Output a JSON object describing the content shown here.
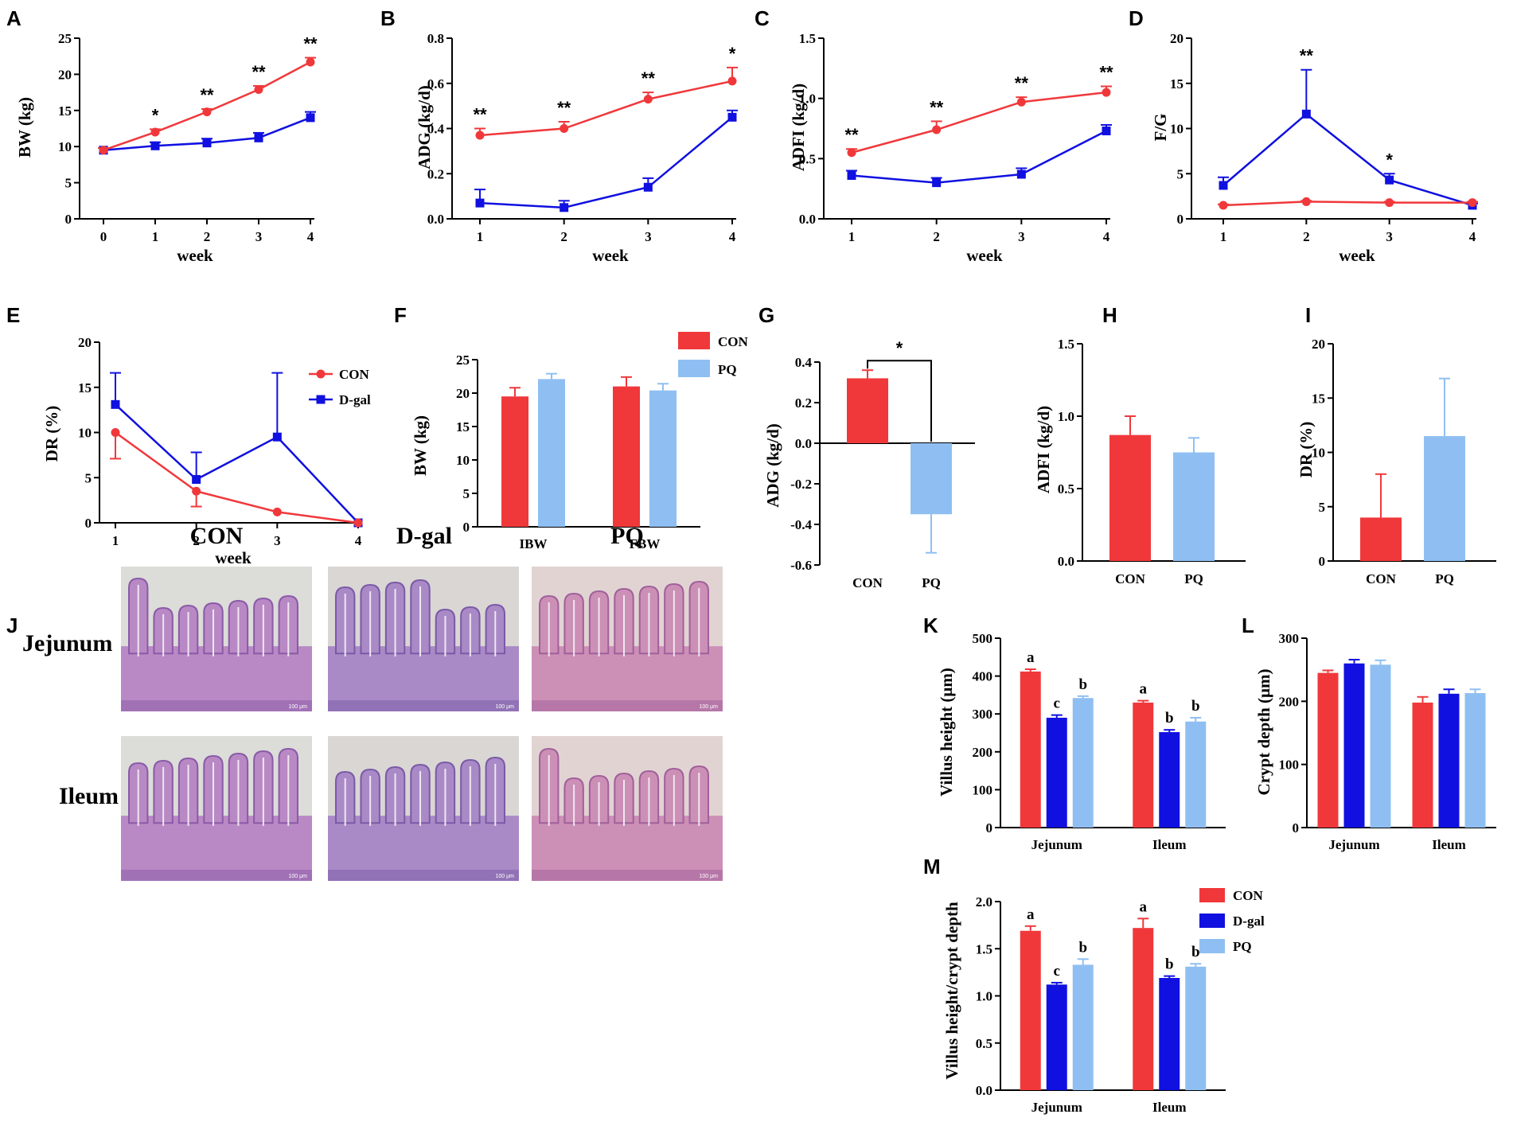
{
  "colors": {
    "con": "#f0383b",
    "dgal": "#1010e0",
    "pq": "#8fbff2",
    "axis": "#000000"
  },
  "chart_data": [
    {
      "id": "A",
      "type": "line",
      "xlabel": "week",
      "ylabel": "BW (kg)",
      "x": [
        0,
        1,
        2,
        3,
        4
      ],
      "xlim": [
        0,
        4
      ],
      "ylim": [
        0,
        25
      ],
      "yticks": [
        0,
        5,
        10,
        15,
        20,
        25
      ],
      "series": [
        {
          "name": "CON",
          "values": [
            9.5,
            12.0,
            14.8,
            17.9,
            21.7
          ],
          "errors": [
            0.3,
            0.4,
            0.4,
            0.5,
            0.6
          ]
        },
        {
          "name": "D-gal",
          "values": [
            9.5,
            10.1,
            10.5,
            11.2,
            14.0
          ],
          "errors": [
            0.3,
            0.5,
            0.6,
            0.7,
            0.8
          ]
        }
      ],
      "annotations": [
        {
          "x": 1,
          "text": "*"
        },
        {
          "x": 2,
          "text": "**"
        },
        {
          "x": 3,
          "text": "**"
        },
        {
          "x": 4,
          "text": "**"
        }
      ]
    },
    {
      "id": "B",
      "type": "line",
      "xlabel": "week",
      "ylabel": "ADG (kg/d)",
      "x": [
        1,
        2,
        3,
        4
      ],
      "xlim": [
        1,
        4
      ],
      "ylim": [
        0,
        0.8
      ],
      "yticks": [
        0.0,
        0.2,
        0.4,
        0.6,
        0.8
      ],
      "series": [
        {
          "name": "CON",
          "values": [
            0.37,
            0.4,
            0.53,
            0.61
          ],
          "errors": [
            0.03,
            0.03,
            0.03,
            0.06
          ]
        },
        {
          "name": "D-gal",
          "values": [
            0.07,
            0.05,
            0.14,
            0.45
          ],
          "errors": [
            0.06,
            0.03,
            0.04,
            0.03
          ]
        }
      ],
      "annotations": [
        {
          "x": 1,
          "text": "**"
        },
        {
          "x": 2,
          "text": "**"
        },
        {
          "x": 3,
          "text": "**"
        },
        {
          "x": 4,
          "text": "*"
        }
      ]
    },
    {
      "id": "C",
      "type": "line",
      "xlabel": "week",
      "ylabel": "ADFI (kg/d)",
      "x": [
        1,
        2,
        3,
        4
      ],
      "xlim": [
        1,
        4
      ],
      "ylim": [
        0,
        1.5
      ],
      "yticks": [
        0.0,
        0.5,
        1.0,
        1.5
      ],
      "series": [
        {
          "name": "CON",
          "values": [
            0.55,
            0.74,
            0.97,
            1.05
          ],
          "errors": [
            0.03,
            0.07,
            0.04,
            0.05
          ]
        },
        {
          "name": "D-gal",
          "values": [
            0.36,
            0.3,
            0.37,
            0.73
          ],
          "errors": [
            0.04,
            0.04,
            0.05,
            0.05
          ]
        }
      ],
      "annotations": [
        {
          "x": 1,
          "text": "**"
        },
        {
          "x": 2,
          "text": "**"
        },
        {
          "x": 3,
          "text": "**"
        },
        {
          "x": 4,
          "text": "**"
        }
      ]
    },
    {
      "id": "D",
      "type": "line",
      "xlabel": "week",
      "ylabel": "F/G",
      "x": [
        1,
        2,
        3,
        4
      ],
      "xlim": [
        1,
        4
      ],
      "ylim": [
        0,
        20
      ],
      "yticks": [
        0,
        5,
        10,
        15,
        20
      ],
      "series": [
        {
          "name": "CON",
          "values": [
            1.5,
            1.9,
            1.8,
            1.8
          ],
          "errors": [
            0.1,
            0.1,
            0.1,
            0.1
          ]
        },
        {
          "name": "D-gal",
          "values": [
            3.7,
            11.6,
            4.3,
            1.5
          ],
          "errors": [
            0.9,
            4.9,
            0.7,
            0.2
          ]
        }
      ],
      "annotations": [
        {
          "x": 2,
          "text": "**"
        },
        {
          "x": 3,
          "text": "*"
        }
      ]
    },
    {
      "id": "E",
      "type": "line",
      "xlabel": "week",
      "ylabel": "DR (%)",
      "x": [
        1,
        2,
        3,
        4
      ],
      "xlim": [
        1,
        4
      ],
      "ylim": [
        0,
        20
      ],
      "yticks": [
        0,
        5,
        10,
        15,
        20
      ],
      "series": [
        {
          "name": "CON",
          "values": [
            10.0,
            3.5,
            1.2,
            0.0
          ],
          "errors": [
            2.9,
            1.7,
            0,
            0
          ],
          "errdir": "down"
        },
        {
          "name": "D-gal",
          "values": [
            13.1,
            4.8,
            9.5,
            0.0
          ],
          "errors": [
            3.5,
            3.0,
            7.1,
            0
          ]
        }
      ],
      "legend": [
        "CON",
        "D-gal"
      ]
    },
    {
      "id": "F",
      "type": "bar",
      "ylabel": "BW (kg)",
      "categories": [
        "IBW",
        "FBW"
      ],
      "ylim": [
        0,
        25
      ],
      "yticks": [
        0,
        5,
        10,
        15,
        20,
        25
      ],
      "series": [
        {
          "name": "CON",
          "values": [
            19.5,
            21.0
          ],
          "errors": [
            1.3,
            1.4
          ]
        },
        {
          "name": "PQ",
          "values": [
            22.1,
            20.4
          ],
          "errors": [
            0.8,
            1.0
          ]
        }
      ],
      "legend": [
        "CON",
        "PQ"
      ]
    },
    {
      "id": "G",
      "type": "bar",
      "ylabel": "ADG (kg/d)",
      "categories": [
        "CON",
        "PQ"
      ],
      "ylim": [
        -0.6,
        0.4
      ],
      "yticks": [
        -0.6,
        -0.4,
        -0.2,
        0.0,
        0.2,
        0.4
      ],
      "values": [
        0.32,
        -0.35
      ],
      "errors": [
        0.04,
        0.19
      ],
      "significance": "*"
    },
    {
      "id": "H",
      "type": "bar",
      "ylabel": "ADFI (kg/d)",
      "categories": [
        "CON",
        "PQ"
      ],
      "ylim": [
        0,
        1.5
      ],
      "yticks": [
        0.0,
        0.5,
        1.0,
        1.5
      ],
      "values": [
        0.87,
        0.75
      ],
      "errors": [
        0.13,
        0.1
      ]
    },
    {
      "id": "I",
      "type": "bar",
      "ylabel": "DR (%)",
      "categories": [
        "CON",
        "PQ"
      ],
      "ylim": [
        0,
        20
      ],
      "yticks": [
        0,
        5,
        10,
        15,
        20
      ],
      "values": [
        4.0,
        11.5
      ],
      "errors": [
        4.0,
        5.3
      ]
    },
    {
      "id": "K",
      "type": "bar",
      "ylabel": "Villus height (μm)",
      "categories": [
        "Jejunum",
        "Ileum"
      ],
      "ylim": [
        0,
        500
      ],
      "yticks": [
        0,
        100,
        200,
        300,
        400,
        500
      ],
      "series": [
        {
          "name": "CON",
          "values": [
            412,
            330
          ],
          "errors": [
            6,
            5
          ],
          "letters": [
            "a",
            "a"
          ]
        },
        {
          "name": "D-gal",
          "values": [
            290,
            252
          ],
          "errors": [
            7,
            6
          ],
          "letters": [
            "c",
            "b"
          ]
        },
        {
          "name": "PQ",
          "values": [
            342,
            280
          ],
          "errors": [
            5,
            10
          ],
          "letters": [
            "b",
            "b"
          ]
        }
      ]
    },
    {
      "id": "L",
      "type": "bar",
      "ylabel": "Crypt depth (μm)",
      "categories": [
        "Jejunum",
        "Ileum"
      ],
      "ylim": [
        0,
        300
      ],
      "yticks": [
        0,
        100,
        200,
        300
      ],
      "series": [
        {
          "name": "CON",
          "values": [
            245,
            198
          ],
          "errors": [
            4,
            9
          ]
        },
        {
          "name": "D-gal",
          "values": [
            260,
            212
          ],
          "errors": [
            6,
            7
          ]
        },
        {
          "name": "PQ",
          "values": [
            258,
            213
          ],
          "errors": [
            7,
            6
          ]
        }
      ]
    },
    {
      "id": "M",
      "type": "bar",
      "ylabel": "Villus height/crypt depth",
      "categories": [
        "Jejunum",
        "Ileum"
      ],
      "ylim": [
        0,
        2.0
      ],
      "yticks": [
        0.0,
        0.5,
        1.0,
        1.5,
        2.0
      ],
      "series": [
        {
          "name": "CON",
          "values": [
            1.69,
            1.72
          ],
          "errors": [
            0.05,
            0.1
          ],
          "letters": [
            "a",
            "a"
          ]
        },
        {
          "name": "D-gal",
          "values": [
            1.12,
            1.19
          ],
          "errors": [
            0.02,
            0.02
          ],
          "letters": [
            "c",
            "b"
          ]
        },
        {
          "name": "PQ",
          "values": [
            1.33,
            1.31
          ],
          "errors": [
            0.06,
            0.03
          ],
          "letters": [
            "b",
            "b"
          ]
        }
      ],
      "legend": [
        "CON",
        "D-gal",
        "PQ"
      ]
    }
  ],
  "histology": {
    "panel_label": "J",
    "columns": [
      "CON",
      "D-gal",
      "PQ"
    ],
    "rows": [
      "Jejunum",
      "Ileum"
    ],
    "scale_label": "100 μm"
  }
}
